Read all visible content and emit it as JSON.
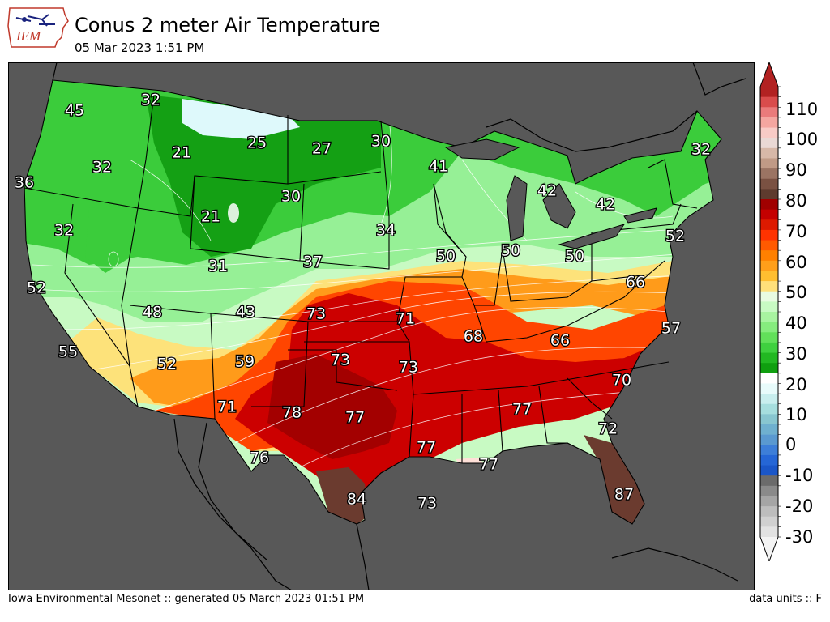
{
  "header": {
    "logo_text": "IEM",
    "title": "Conus 2 meter Air Temperature",
    "timestamp": "05 Mar 2023 1:51 PM"
  },
  "footer": {
    "credit": "Iowa Environmental Mesonet :: generated 05 March 2023 01:51 PM",
    "units": "data units :: F"
  },
  "colors": {
    "ocean": "#585858",
    "snow": "#def9fb",
    "deep_green": "#14a014",
    "green": "#3bcc3b",
    "light_green": "#96f096",
    "pale_green": "#c8fac3",
    "yellow": "#fde27a",
    "orange": "#ff9b1a",
    "orange_red": "#ff4500",
    "red": "#cc0000",
    "dark_red": "#a30000",
    "brown": "#6b3b2f"
  },
  "colorbar": {
    "ticks": [
      "110",
      "100",
      "90",
      "80",
      "70",
      "60",
      "50",
      "40",
      "30",
      "20",
      "10",
      "0",
      "-10",
      "-20",
      "-30"
    ],
    "units": "F"
  },
  "station_labels": [
    {
      "text": "45"
    },
    {
      "text": "32"
    },
    {
      "text": "21"
    },
    {
      "text": "25"
    },
    {
      "text": "27"
    },
    {
      "text": "30"
    },
    {
      "text": "32"
    },
    {
      "text": "36"
    },
    {
      "text": "32"
    },
    {
      "text": "41"
    },
    {
      "text": "42"
    },
    {
      "text": "42"
    },
    {
      "text": "21"
    },
    {
      "text": "30"
    },
    {
      "text": "32"
    },
    {
      "text": "34"
    },
    {
      "text": "52"
    },
    {
      "text": "31"
    },
    {
      "text": "37"
    },
    {
      "text": "50"
    },
    {
      "text": "50"
    },
    {
      "text": "50"
    },
    {
      "text": "52"
    },
    {
      "text": "66"
    },
    {
      "text": "48"
    },
    {
      "text": "43"
    },
    {
      "text": "73"
    },
    {
      "text": "71"
    },
    {
      "text": "68"
    },
    {
      "text": "66"
    },
    {
      "text": "57"
    },
    {
      "text": "55"
    },
    {
      "text": "52"
    },
    {
      "text": "59"
    },
    {
      "text": "73"
    },
    {
      "text": "73"
    },
    {
      "text": "70"
    },
    {
      "text": "71"
    },
    {
      "text": "78"
    },
    {
      "text": "77"
    },
    {
      "text": "77"
    },
    {
      "text": "72"
    },
    {
      "text": "76"
    },
    {
      "text": "77"
    },
    {
      "text": "77"
    },
    {
      "text": "84"
    },
    {
      "text": "73"
    },
    {
      "text": "87"
    }
  ]
}
